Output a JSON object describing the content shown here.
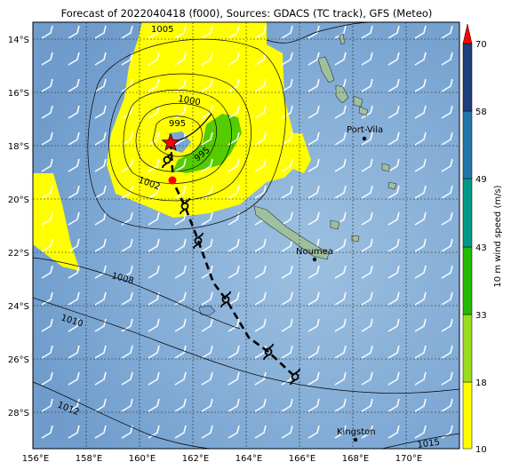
{
  "title": "Forecast of 2022040418 (f000), Sources: GDACS (TC track), GFS (Meteo)",
  "x_ticks": [
    "156°E",
    "158°E",
    "160°E",
    "162°E",
    "164°E",
    "166°E",
    "168°E",
    "170°E"
  ],
  "y_ticks": [
    "14°S",
    "16°S",
    "18°S",
    "20°S",
    "22°S",
    "24°S",
    "26°S",
    "28°S"
  ],
  "isobars": [
    "1005",
    "1000",
    "995",
    "995",
    "1002",
    "1008",
    "1010",
    "1012",
    "1015"
  ],
  "places": [
    {
      "name": "Port-Vila"
    },
    {
      "name": "Noumea"
    },
    {
      "name": "Kingston"
    }
  ],
  "colorbar": {
    "label": "10 m wind speed (m/s)",
    "ticks": [
      "10",
      "18",
      "33",
      "43",
      "49",
      "58",
      "70"
    ],
    "colors": [
      "#ffff00",
      "#99dd22",
      "#22bb00",
      "#009988",
      "#2277aa",
      "#1f3f7f"
    ]
  },
  "colors": {
    "sea": "#7ba6d2",
    "land": "#9fbf9f",
    "yellow": "#ffff00",
    "green": "#55cc00",
    "track": "#000000",
    "current_position": "#ff0000"
  },
  "track_icon": "tropical-cyclone-symbol",
  "position_icon": "red-star"
}
